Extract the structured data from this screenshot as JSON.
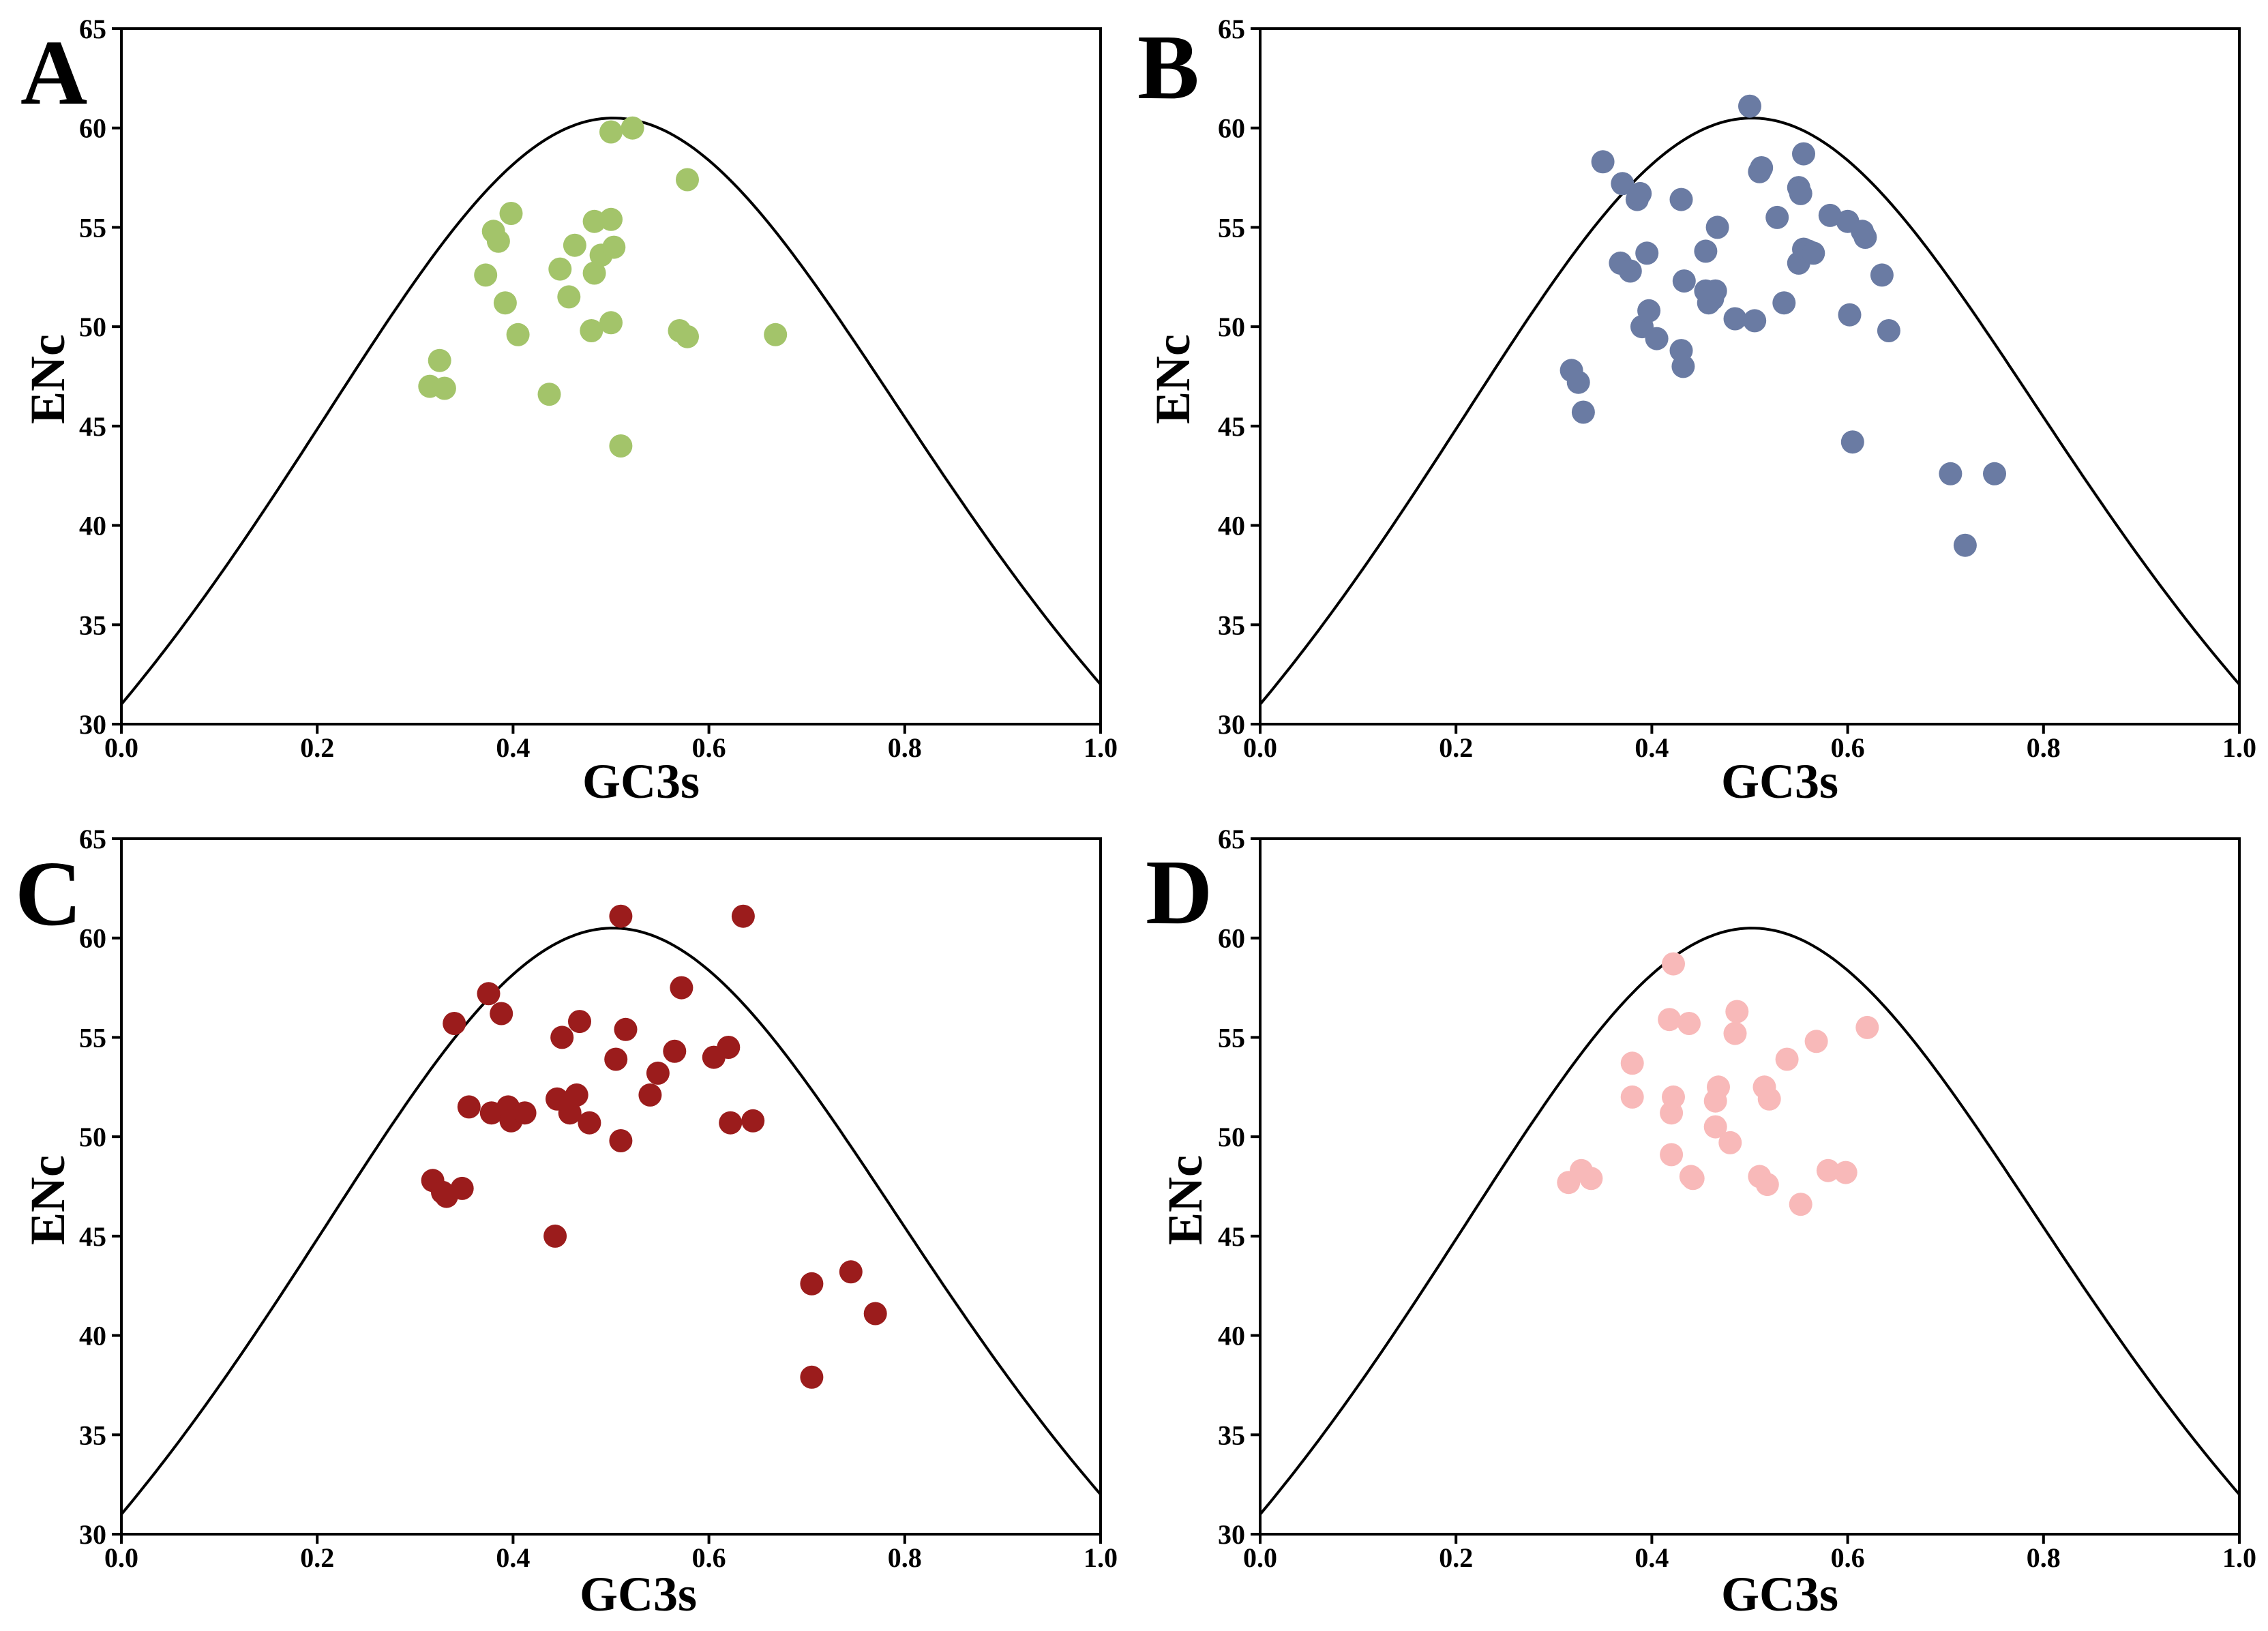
{
  "chart_data": [
    {
      "type": "scatter",
      "panel": "A",
      "xlabel": "GC3s",
      "ylabel": "ENc",
      "xlim": [
        0.0,
        1.0
      ],
      "ylim": [
        30,
        65
      ],
      "xticks": [
        "0.0",
        "0.2",
        "0.4",
        "0.6",
        "0.8",
        "1.0"
      ],
      "yticks": [
        "30",
        "35",
        "40",
        "45",
        "50",
        "55",
        "60",
        "65"
      ],
      "point_color": "#a3c46a",
      "curve": "expected ENc = 2 + s + 29/(s^2 + (1-s)^2)",
      "points": [
        [
          0.315,
          47.0
        ],
        [
          0.33,
          46.9
        ],
        [
          0.325,
          48.3
        ],
        [
          0.372,
          52.6
        ],
        [
          0.38,
          54.8
        ],
        [
          0.385,
          54.3
        ],
        [
          0.392,
          51.2
        ],
        [
          0.398,
          55.7
        ],
        [
          0.405,
          49.6
        ],
        [
          0.437,
          46.6
        ],
        [
          0.448,
          52.9
        ],
        [
          0.457,
          51.5
        ],
        [
          0.463,
          54.1
        ],
        [
          0.48,
          49.8
        ],
        [
          0.483,
          52.7
        ],
        [
          0.483,
          55.3
        ],
        [
          0.49,
          53.6
        ],
        [
          0.5,
          55.4
        ],
        [
          0.5,
          50.2
        ],
        [
          0.503,
          54.0
        ],
        [
          0.5,
          59.8
        ],
        [
          0.51,
          44.0
        ],
        [
          0.522,
          60.0
        ],
        [
          0.57,
          49.8
        ],
        [
          0.578,
          49.5
        ],
        [
          0.578,
          57.4
        ],
        [
          0.668,
          49.6
        ]
      ]
    },
    {
      "type": "scatter",
      "panel": "B",
      "xlabel": "GC3s",
      "ylabel": "ENc",
      "xlim": [
        0.0,
        1.0
      ],
      "ylim": [
        30,
        65
      ],
      "xticks": [
        "0.0",
        "0.2",
        "0.4",
        "0.6",
        "0.8",
        "1.0"
      ],
      "yticks": [
        "30",
        "35",
        "40",
        "45",
        "50",
        "55",
        "60",
        "65"
      ],
      "point_color": "#6a7ba3",
      "curve": "expected ENc = 2 + s + 29/(s^2 + (1-s)^2)",
      "points": [
        [
          0.318,
          47.8
        ],
        [
          0.325,
          47.2
        ],
        [
          0.33,
          45.7
        ],
        [
          0.35,
          58.3
        ],
        [
          0.368,
          53.2
        ],
        [
          0.37,
          57.2
        ],
        [
          0.378,
          52.8
        ],
        [
          0.385,
          56.4
        ],
        [
          0.388,
          56.7
        ],
        [
          0.39,
          50.0
        ],
        [
          0.395,
          53.7
        ],
        [
          0.397,
          50.8
        ],
        [
          0.405,
          49.4
        ],
        [
          0.43,
          56.4
        ],
        [
          0.43,
          48.8
        ],
        [
          0.432,
          48.0
        ],
        [
          0.433,
          52.3
        ],
        [
          0.455,
          53.8
        ],
        [
          0.455,
          51.8
        ],
        [
          0.458,
          51.2
        ],
        [
          0.462,
          51.4
        ],
        [
          0.465,
          51.8
        ],
        [
          0.467,
          55.0
        ],
        [
          0.485,
          50.4
        ],
        [
          0.5,
          61.1
        ],
        [
          0.505,
          50.3
        ],
        [
          0.51,
          57.8
        ],
        [
          0.512,
          58.0
        ],
        [
          0.528,
          55.5
        ],
        [
          0.535,
          51.2
        ],
        [
          0.55,
          57.0
        ],
        [
          0.55,
          53.2
        ],
        [
          0.552,
          56.7
        ],
        [
          0.555,
          53.9
        ],
        [
          0.555,
          58.7
        ],
        [
          0.56,
          53.8
        ],
        [
          0.565,
          53.7
        ],
        [
          0.582,
          55.6
        ],
        [
          0.6,
          55.3
        ],
        [
          0.602,
          50.6
        ],
        [
          0.605,
          44.2
        ],
        [
          0.615,
          54.8
        ],
        [
          0.618,
          54.5
        ],
        [
          0.635,
          52.6
        ],
        [
          0.642,
          49.8
        ],
        [
          0.705,
          42.6
        ],
        [
          0.72,
          39.0
        ],
        [
          0.75,
          42.6
        ]
      ]
    },
    {
      "type": "scatter",
      "panel": "C",
      "xlabel": "GC3s",
      "ylabel": "ENc",
      "xlim": [
        0.0,
        1.0
      ],
      "ylim": [
        30,
        65
      ],
      "xticks": [
        "0.0",
        "0.2",
        "0.4",
        "0.6",
        "0.8",
        "1.0"
      ],
      "yticks": [
        "30",
        "35",
        "40",
        "45",
        "50",
        "55",
        "60",
        "65"
      ],
      "point_color": "#9b1c1c",
      "curve": "expected ENc = 2 + s + 29/(s^2 + (1-s)^2)",
      "points": [
        [
          0.318,
          47.8
        ],
        [
          0.328,
          47.2
        ],
        [
          0.332,
          47.0
        ],
        [
          0.34,
          55.7
        ],
        [
          0.348,
          47.4
        ],
        [
          0.355,
          51.5
        ],
        [
          0.375,
          57.2
        ],
        [
          0.378,
          51.2
        ],
        [
          0.388,
          56.2
        ],
        [
          0.395,
          51.5
        ],
        [
          0.398,
          50.8
        ],
        [
          0.412,
          51.2
        ],
        [
          0.443,
          45.0
        ],
        [
          0.445,
          51.9
        ],
        [
          0.45,
          55.0
        ],
        [
          0.458,
          51.2
        ],
        [
          0.465,
          52.1
        ],
        [
          0.468,
          55.8
        ],
        [
          0.478,
          50.7
        ],
        [
          0.505,
          53.9
        ],
        [
          0.51,
          49.8
        ],
        [
          0.51,
          61.1
        ],
        [
          0.515,
          55.4
        ],
        [
          0.54,
          52.1
        ],
        [
          0.548,
          53.2
        ],
        [
          0.565,
          54.3
        ],
        [
          0.572,
          57.5
        ],
        [
          0.605,
          54.0
        ],
        [
          0.62,
          54.5
        ],
        [
          0.622,
          50.7
        ],
        [
          0.635,
          61.1
        ],
        [
          0.645,
          50.8
        ],
        [
          0.705,
          42.6
        ],
        [
          0.705,
          37.9
        ],
        [
          0.745,
          43.2
        ],
        [
          0.77,
          41.1
        ]
      ]
    },
    {
      "type": "scatter",
      "panel": "D",
      "xlabel": "GC3s",
      "ylabel": "ENc",
      "xlim": [
        0.0,
        1.0
      ],
      "ylim": [
        30,
        65
      ],
      "xticks": [
        "0.0",
        "0.2",
        "0.4",
        "0.6",
        "0.8",
        "1.0"
      ],
      "yticks": [
        "30",
        "35",
        "40",
        "45",
        "50",
        "55",
        "60",
        "65"
      ],
      "point_color": "#f8b9b9",
      "curve": "expected ENc = 2 + s + 29/(s^2 + (1-s)^2)",
      "points": [
        [
          0.315,
          47.7
        ],
        [
          0.328,
          48.3
        ],
        [
          0.338,
          47.9
        ],
        [
          0.38,
          53.7
        ],
        [
          0.38,
          52.0
        ],
        [
          0.418,
          55.9
        ],
        [
          0.42,
          49.1
        ],
        [
          0.42,
          51.2
        ],
        [
          0.422,
          52.0
        ],
        [
          0.422,
          58.7
        ],
        [
          0.438,
          55.7
        ],
        [
          0.44,
          48.0
        ],
        [
          0.442,
          47.9
        ],
        [
          0.465,
          51.8
        ],
        [
          0.465,
          50.5
        ],
        [
          0.468,
          52.5
        ],
        [
          0.48,
          49.7
        ],
        [
          0.485,
          55.2
        ],
        [
          0.487,
          56.3
        ],
        [
          0.51,
          48.0
        ],
        [
          0.515,
          52.5
        ],
        [
          0.518,
          47.6
        ],
        [
          0.52,
          51.9
        ],
        [
          0.538,
          53.9
        ],
        [
          0.552,
          46.6
        ],
        [
          0.568,
          54.8
        ],
        [
          0.58,
          48.3
        ],
        [
          0.598,
          48.2
        ],
        [
          0.62,
          55.5
        ]
      ]
    }
  ]
}
